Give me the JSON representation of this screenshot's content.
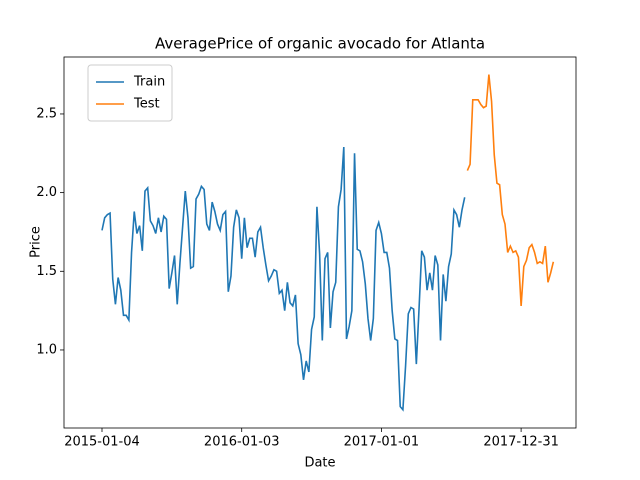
{
  "chart_data": {
    "type": "line",
    "title": "AveragePrice of organic avocado for Atlanta",
    "xlabel": "Date",
    "ylabel": "Price",
    "xlim": [
      "2014-09-27",
      "2018-05-23"
    ],
    "xticks": [
      "2015-01-04",
      "2016-01-03",
      "2017-01-01",
      "2017-12-31"
    ],
    "ylim": [
      0.504,
      2.862
    ],
    "yticks": [
      {
        "value": 1,
        "label": "1.0"
      },
      {
        "value": 1.5,
        "label": "1.5"
      },
      {
        "value": 2,
        "label": "2.0"
      },
      {
        "value": 2.5,
        "label": "2.5"
      }
    ],
    "grid": false,
    "legend": "upper left",
    "series": [
      {
        "name": "Train",
        "color": "#1f77b4",
        "x": [
          "2015-01-04",
          "2015-01-11",
          "2015-01-18",
          "2015-01-25",
          "2015-02-01",
          "2015-02-08",
          "2015-02-15",
          "2015-02-22",
          "2015-03-01",
          "2015-03-08",
          "2015-03-15",
          "2015-03-22",
          "2015-03-29",
          "2015-04-05",
          "2015-04-12",
          "2015-04-19",
          "2015-04-26",
          "2015-05-03",
          "2015-05-10",
          "2015-05-17",
          "2015-05-24",
          "2015-05-31",
          "2015-06-07",
          "2015-06-14",
          "2015-06-21",
          "2015-06-28",
          "2015-07-05",
          "2015-07-12",
          "2015-07-19",
          "2015-07-26",
          "2015-08-02",
          "2015-08-09",
          "2015-08-16",
          "2015-08-23",
          "2015-08-30",
          "2015-09-06",
          "2015-09-13",
          "2015-09-20",
          "2015-09-27",
          "2015-10-04",
          "2015-10-11",
          "2015-10-18",
          "2015-10-25",
          "2015-11-01",
          "2015-11-08",
          "2015-11-15",
          "2015-11-22",
          "2015-11-29",
          "2015-12-06",
          "2015-12-13",
          "2015-12-20",
          "2015-12-27",
          "2016-01-03",
          "2016-01-10",
          "2016-01-17",
          "2016-01-24",
          "2016-01-31",
          "2016-02-07",
          "2016-02-14",
          "2016-02-21",
          "2016-02-28",
          "2016-03-06",
          "2016-03-13",
          "2016-03-20",
          "2016-03-27",
          "2016-04-03",
          "2016-04-10",
          "2016-04-17",
          "2016-04-24",
          "2016-05-01",
          "2016-05-08",
          "2016-05-15",
          "2016-05-22",
          "2016-05-29",
          "2016-06-05",
          "2016-06-12",
          "2016-06-19",
          "2016-06-26",
          "2016-07-03",
          "2016-07-10",
          "2016-07-17",
          "2016-07-24",
          "2016-07-31",
          "2016-08-07",
          "2016-08-14",
          "2016-08-21",
          "2016-08-28",
          "2016-09-04",
          "2016-09-11",
          "2016-09-18",
          "2016-09-25",
          "2016-10-02",
          "2016-10-09",
          "2016-10-16",
          "2016-10-23",
          "2016-10-30",
          "2016-11-06",
          "2016-11-13",
          "2016-11-20",
          "2016-11-27",
          "2016-12-04",
          "2016-12-11",
          "2016-12-18",
          "2016-12-25",
          "2017-01-01",
          "2017-01-08",
          "2017-01-15",
          "2017-01-22",
          "2017-01-29",
          "2017-02-05",
          "2017-02-12",
          "2017-02-19",
          "2017-02-26",
          "2017-03-05",
          "2017-03-12",
          "2017-03-19",
          "2017-03-26",
          "2017-04-02",
          "2017-04-09",
          "2017-04-16",
          "2017-04-23",
          "2017-04-30",
          "2017-05-07",
          "2017-05-14",
          "2017-05-21",
          "2017-05-28",
          "2017-06-04",
          "2017-06-11",
          "2017-06-18",
          "2017-06-25",
          "2017-07-02",
          "2017-07-09",
          "2017-07-16",
          "2017-07-23",
          "2017-07-30",
          "2017-08-06"
        ],
        "values": [
          1.76,
          1.84,
          1.86,
          1.87,
          1.45,
          1.29,
          1.46,
          1.38,
          1.22,
          1.22,
          1.19,
          1.62,
          1.88,
          1.74,
          1.79,
          1.63,
          2.01,
          2.03,
          1.82,
          1.79,
          1.74,
          1.84,
          1.75,
          1.85,
          1.83,
          1.39,
          1.49,
          1.6,
          1.29,
          1.55,
          1.78,
          2.01,
          1.84,
          1.52,
          1.53,
          1.96,
          1.99,
          2.04,
          2.02,
          1.8,
          1.76,
          1.94,
          1.88,
          1.8,
          1.76,
          1.86,
          1.88,
          1.37,
          1.47,
          1.78,
          1.89,
          1.84,
          1.58,
          1.84,
          1.65,
          1.71,
          1.71,
          1.59,
          1.75,
          1.78,
          1.65,
          1.54,
          1.44,
          1.47,
          1.51,
          1.5,
          1.36,
          1.38,
          1.25,
          1.43,
          1.3,
          1.28,
          1.35,
          1.04,
          0.97,
          0.81,
          0.93,
          0.86,
          1.13,
          1.21,
          1.91,
          1.61,
          1.06,
          1.58,
          1.62,
          1.14,
          1.37,
          1.43,
          1.91,
          2.02,
          2.29,
          1.07,
          1.15,
          1.25,
          2.25,
          1.64,
          1.63,
          1.56,
          1.42,
          1.2,
          1.06,
          1.2,
          1.76,
          1.81,
          1.74,
          1.62,
          1.62,
          1.52,
          1.25,
          1.07,
          1.06,
          0.64,
          0.62,
          0.9,
          1.23,
          1.27,
          1.26,
          0.91,
          1.26,
          1.63,
          1.59,
          1.38,
          1.49,
          1.38,
          1.6,
          1.54,
          1.06,
          1.48,
          1.31,
          1.53,
          1.61,
          1.89,
          1.86,
          1.78,
          1.89,
          1.97
        ]
      },
      {
        "name": "Test",
        "color": "#ff7f0e",
        "x": [
          "2017-08-13",
          "2017-08-20",
          "2017-08-27",
          "2017-09-03",
          "2017-09-10",
          "2017-09-17",
          "2017-09-24",
          "2017-10-01",
          "2017-10-08",
          "2017-10-15",
          "2017-10-22",
          "2017-10-29",
          "2017-11-05",
          "2017-11-12",
          "2017-11-19",
          "2017-11-26",
          "2017-12-03",
          "2017-12-10",
          "2017-12-17",
          "2017-12-24",
          "2017-12-31",
          "2018-01-07",
          "2018-01-14",
          "2018-01-21",
          "2018-01-28",
          "2018-02-04",
          "2018-02-11",
          "2018-02-18",
          "2018-02-25",
          "2018-03-04",
          "2018-03-11",
          "2018-03-18",
          "2018-03-25"
        ],
        "values": [
          2.14,
          2.18,
          2.59,
          2.59,
          2.59,
          2.56,
          2.54,
          2.55,
          2.75,
          2.58,
          2.24,
          2.06,
          2.05,
          1.86,
          1.8,
          1.62,
          1.66,
          1.62,
          1.63,
          1.59,
          1.28,
          1.53,
          1.57,
          1.65,
          1.67,
          1.62,
          1.55,
          1.56,
          1.55,
          1.66,
          1.43,
          1.49,
          1.56
        ]
      }
    ]
  }
}
